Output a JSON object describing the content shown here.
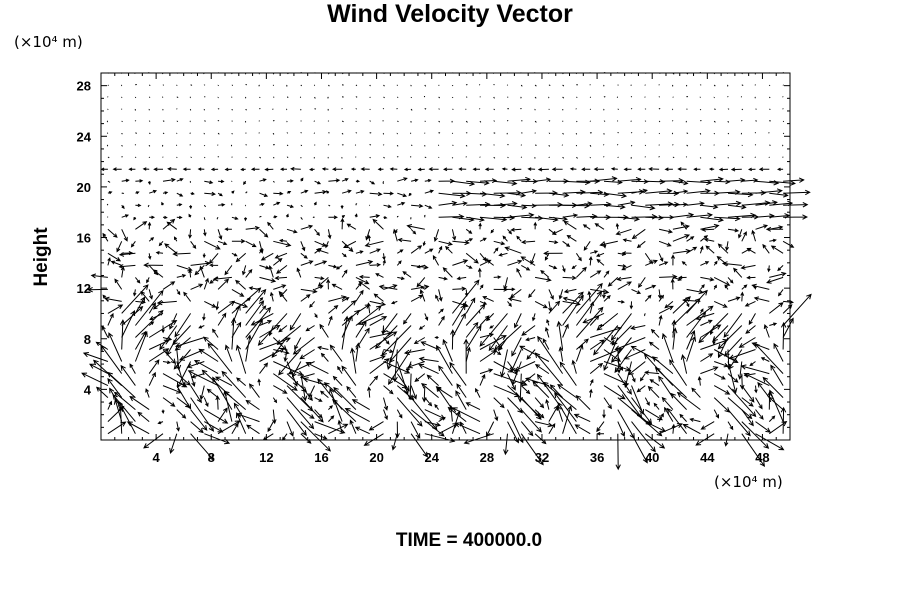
{
  "chart_data": {
    "type": "vector_field",
    "title": "Wind Velocity Vector",
    "ylabel": "Height",
    "xlabel": "",
    "x_unit": "(×10⁴ m)",
    "y_unit": "(×10⁴ m)",
    "xlim": [
      0,
      50
    ],
    "ylim": [
      0,
      29
    ],
    "xticks": [
      4,
      8,
      12,
      16,
      20,
      24,
      28,
      32,
      36,
      40,
      44,
      48
    ],
    "yticks": [
      4,
      8,
      12,
      16,
      20,
      24,
      28
    ],
    "footer": "TIME = 400000.0",
    "grid": false,
    "field_note": "Wind vectors on a regular grid; strong convective circulations below height 12, organized flow near 18–21, calm above."
  }
}
